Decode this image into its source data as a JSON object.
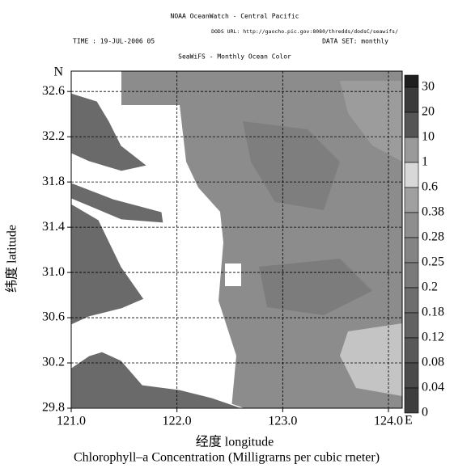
{
  "header": {
    "title": "NOAA OceanWatch - Central Pacific",
    "dods_url": "DODS URL: http://gaocho.pic.gov:8080/thredds/dodsC/seawifs/",
    "time": "TIME : 19-JUL-2006 05",
    "dataset": "DATA SET: monthly",
    "subtitle": "SeaWiFS - Monthly Ocean Color"
  },
  "map": {
    "xlim": [
      121.0,
      124.13
    ],
    "ylim": [
      29.8,
      32.78
    ],
    "xticks": [
      {
        "value": 121,
        "label": "121.0"
      },
      {
        "value": 122,
        "label": "122.0"
      },
      {
        "value": 123,
        "label": "123.0"
      },
      {
        "value": 124,
        "label": "124.0"
      }
    ],
    "yticks": [
      {
        "value": 29.8,
        "label": "29.8"
      },
      {
        "value": 30.2,
        "label": "30.2"
      },
      {
        "value": 30.6,
        "label": "30.6"
      },
      {
        "value": 31,
        "label": "31.0"
      },
      {
        "value": 31.4,
        "label": "31.4"
      },
      {
        "value": 31.8,
        "label": "31.8"
      },
      {
        "value": 32.2,
        "label": "32.2"
      },
      {
        "value": 32.6,
        "label": "32.6"
      }
    ],
    "grid": true,
    "north_label": "N",
    "east_label": "E",
    "ylabel": "纬度 latitude",
    "xlabel": "经度 longitude",
    "caption": "Chlorophyll–a Concentration (Milligrarns per cubic rneter)"
  },
  "colorbar": {
    "labels": [
      30,
      20,
      10,
      1,
      0.6,
      0.38,
      0.28,
      0.25,
      0.2,
      0.18,
      0.12,
      0.08,
      0.04,
      0
    ],
    "colors": [
      "#1e1e1e",
      "#3a3a3a",
      "#555555",
      "#9a9a9a",
      "#d8d8d8",
      "#a0a0a0",
      "#8e8e8e",
      "#848484",
      "#7a7a7a",
      "#6e6e6e",
      "#626262",
      "#585858",
      "#4a4a4a",
      "#3e3e3e"
    ]
  }
}
